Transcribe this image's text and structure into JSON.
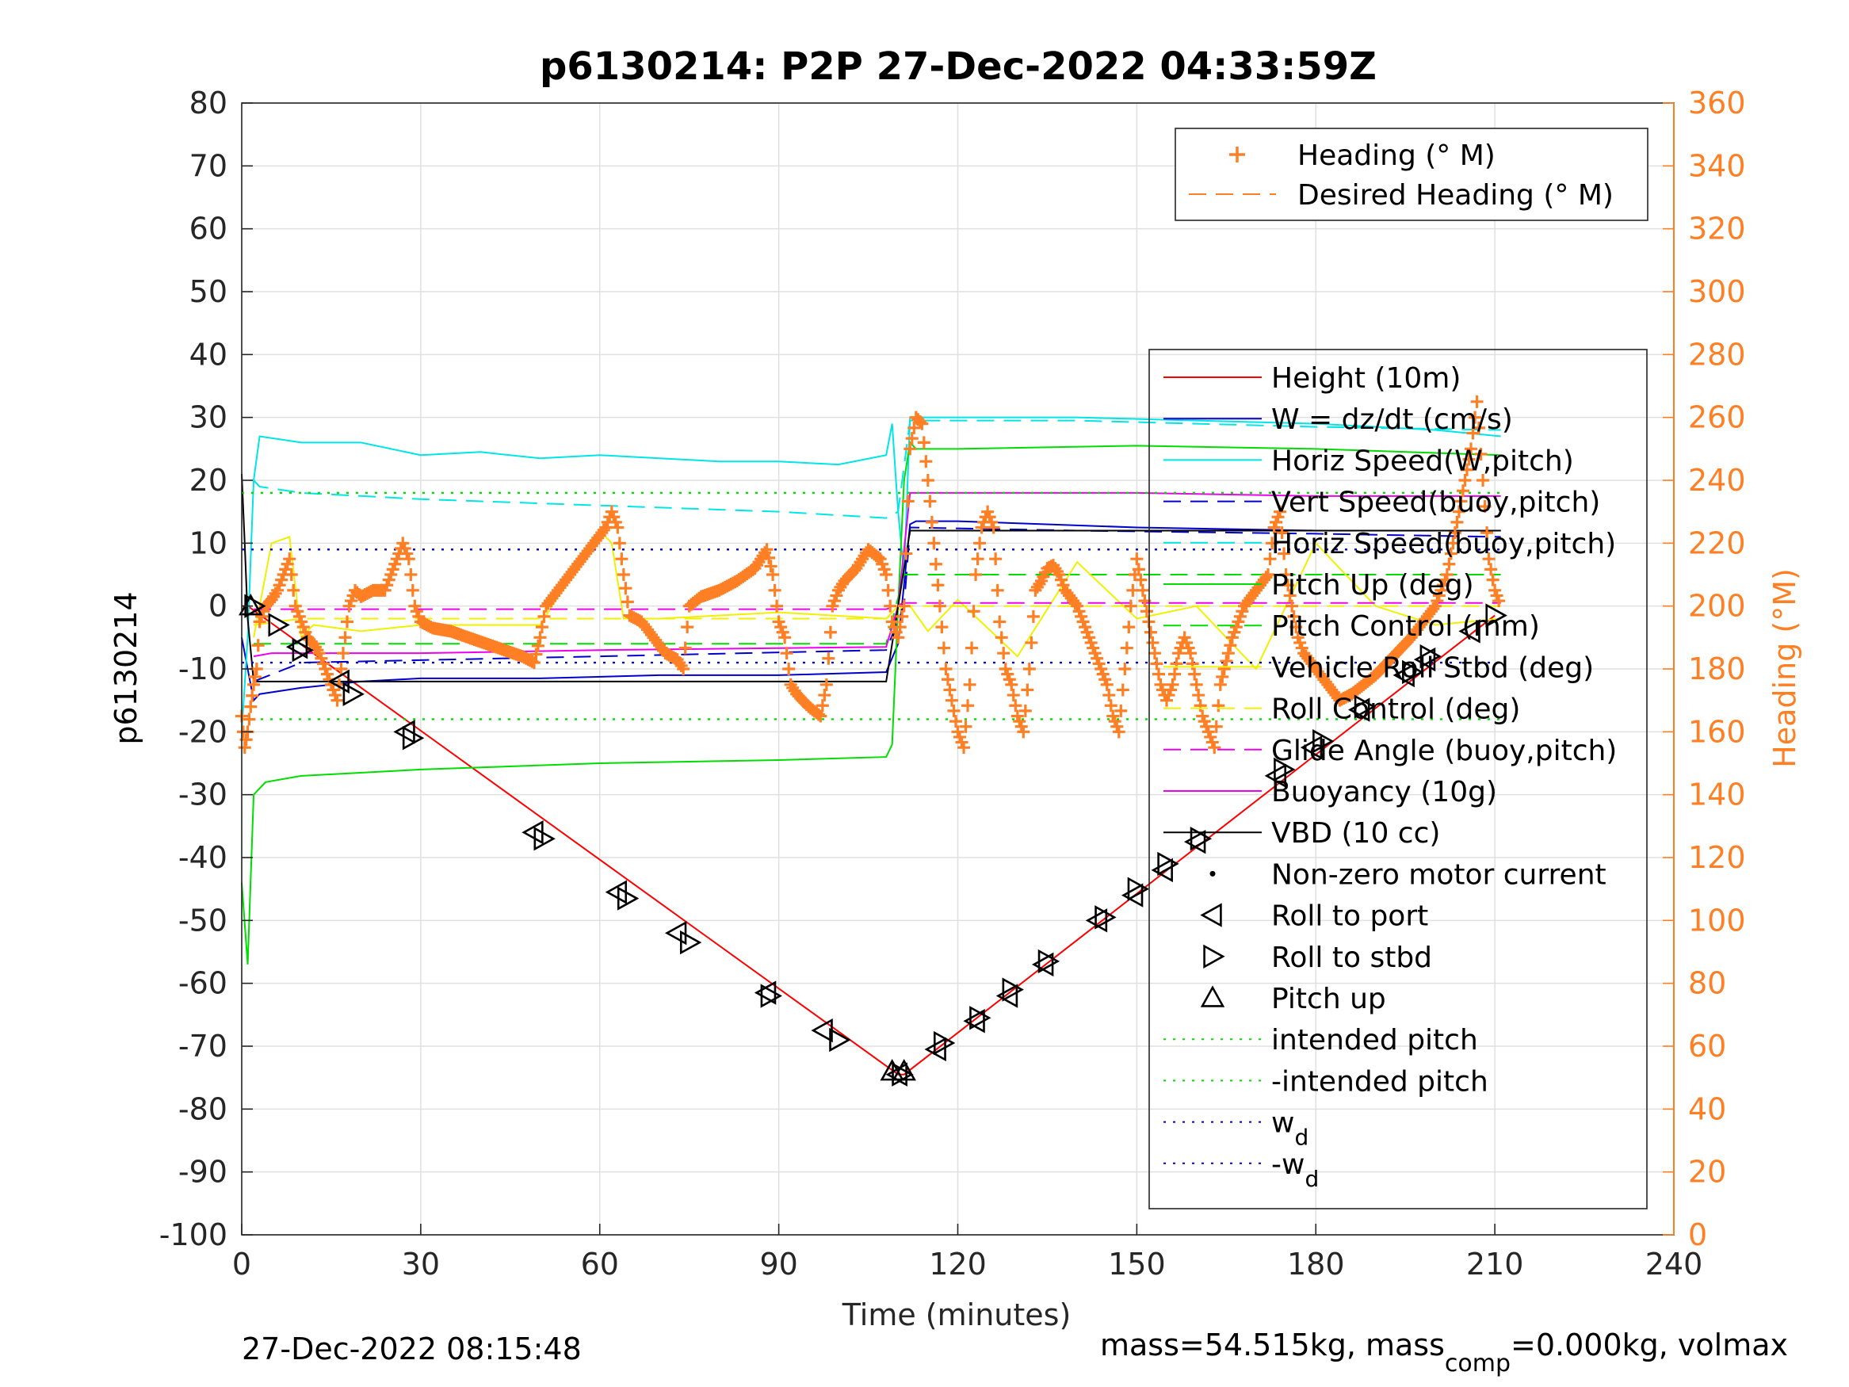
{
  "chart_data": {
    "type": "line",
    "title": "p6130214: P2P 27-Dec-2022 04:33:59Z",
    "xlabel": "Time (minutes)",
    "ylabel_left": "p6130214",
    "ylabel_right": "Heading (°M)",
    "xlim": [
      0,
      240
    ],
    "ylim_left": [
      -100,
      80
    ],
    "ylim_right": [
      0,
      360
    ],
    "xticks": [
      0,
      30,
      60,
      90,
      120,
      150,
      180,
      210,
      240
    ],
    "yticks_left": [
      -100,
      -90,
      -80,
      -70,
      -60,
      -50,
      -40,
      -30,
      -20,
      -10,
      0,
      10,
      20,
      30,
      40,
      50,
      60,
      70,
      80
    ],
    "yticks_right": [
      0,
      20,
      40,
      60,
      80,
      100,
      120,
      140,
      160,
      180,
      200,
      220,
      240,
      260,
      280,
      300,
      320,
      340,
      360
    ],
    "grid": true,
    "timestamp": "27-Dec-2022 08:15:48",
    "footer": {
      "prefix": "mass=54.515kg, mass",
      "sub": "comp",
      "suffix": "=0.000kg, volmax"
    },
    "legend_heading": [
      {
        "label": "Heading (° M)",
        "style": "plus",
        "color": "#ff7f24"
      },
      {
        "label": "Desired Heading (° M)",
        "style": "dashed",
        "color": "#ff7f24"
      }
    ],
    "legend_main": [
      {
        "label": "Height (10m)",
        "style": "solid",
        "color": "#ff0000"
      },
      {
        "label": "W = dz/dt (cm/s)",
        "style": "solid",
        "color": "#0000cc"
      },
      {
        "label": "Horiz Speed(W,pitch)",
        "style": "solid",
        "color": "#00e5e5"
      },
      {
        "label": "Vert Speed(buoy,pitch)",
        "style": "dashed",
        "color": "#0000cc"
      },
      {
        "label": "Horiz Speed(buoy,pitch)",
        "style": "dashed",
        "color": "#00e5e5"
      },
      {
        "label": "Pitch Up (deg)",
        "style": "solid",
        "color": "#00dd00"
      },
      {
        "label": "Pitch Control (mm)",
        "style": "dashed",
        "color": "#00dd00"
      },
      {
        "label": "Vehicle Roll Stbd (deg)",
        "style": "solid",
        "color": "#f0f000"
      },
      {
        "label": "Roll Control (deg)",
        "style": "dashed",
        "color": "#f0f000"
      },
      {
        "label": "Glide Angle (buoy,pitch)",
        "style": "dashed",
        "color": "#ee00ee"
      },
      {
        "label": "Buoyancy (10g)",
        "style": "solid",
        "color": "#ee00ee"
      },
      {
        "label": "VBD (10 cc)",
        "style": "solid",
        "color": "#000000"
      },
      {
        "label": "Non-zero motor current",
        "style": "dot",
        "color": "#000000"
      },
      {
        "label": "Roll to port",
        "style": "tri-left",
        "color": "#000000"
      },
      {
        "label": "Roll to stbd",
        "style": "tri-right",
        "color": "#000000"
      },
      {
        "label": "Pitch up",
        "style": "tri-up",
        "color": "#000000"
      },
      {
        "label": "intended pitch",
        "style": "dotted",
        "color": "#00dd00"
      },
      {
        "label": "-intended pitch",
        "style": "dotted",
        "color": "#00dd00"
      },
      {
        "label": "w",
        "sub": "d",
        "style": "dotted",
        "color": "#0000cc"
      },
      {
        "label": "-w",
        "sub": "d",
        "style": "dotted",
        "color": "#0000cc"
      }
    ],
    "series": [
      {
        "name": "Height (10m)",
        "axis": "left",
        "color": "#ff0000",
        "style": "solid",
        "x": [
          0,
          1,
          110,
          111,
          210
        ],
        "y": [
          0,
          0,
          -74.5,
          -74.5,
          -1.5
        ]
      },
      {
        "name": "W = dz/dt (cm/s)",
        "axis": "left",
        "color": "#0000cc",
        "style": "solid",
        "x": [
          0,
          1,
          2,
          3,
          10,
          20,
          30,
          50,
          70,
          90,
          108,
          110,
          112,
          113,
          120,
          150,
          180,
          211
        ],
        "y": [
          -5,
          -10,
          -15,
          -14,
          -13,
          -12,
          -11.5,
          -11.5,
          -11,
          -11,
          -10.5,
          -6,
          13,
          13.5,
          13.5,
          12.5,
          12,
          12
        ]
      },
      {
        "name": "Horiz Speed(W,pitch)",
        "axis": "left",
        "color": "#00e5e5",
        "style": "solid",
        "x": [
          0,
          1,
          2,
          3,
          10,
          20,
          30,
          40,
          50,
          60,
          70,
          80,
          90,
          100,
          108,
          109,
          110,
          111,
          112,
          120,
          140,
          160,
          180,
          200,
          211
        ],
        "y": [
          -20,
          -5,
          20,
          27,
          26,
          26,
          24,
          24.5,
          23.5,
          24,
          23.5,
          23,
          23,
          22.5,
          24,
          29,
          15,
          5,
          30,
          30,
          30,
          29.5,
          29,
          28,
          27
        ]
      },
      {
        "name": "Vert Speed(buoy,pitch)",
        "axis": "left",
        "color": "#0000cc",
        "style": "dashed",
        "x": [
          2,
          10,
          60,
          108,
          111,
          112,
          140,
          180,
          211
        ],
        "y": [
          -12,
          -9,
          -8,
          -7,
          0,
          12.5,
          12,
          11.5,
          11
        ]
      },
      {
        "name": "Horiz Speed(buoy,pitch)",
        "axis": "left",
        "color": "#00e5e5",
        "style": "dashed",
        "x": [
          2,
          3,
          10,
          30,
          60,
          90,
          108,
          110,
          112,
          140,
          180,
          211
        ],
        "y": [
          20,
          19,
          18,
          17,
          16,
          15,
          14,
          15,
          29.5,
          29.5,
          28.5,
          28
        ]
      },
      {
        "name": "Pitch Up (deg)",
        "axis": "left",
        "color": "#00dd00",
        "style": "solid",
        "x": [
          0,
          1,
          2,
          3,
          4,
          10,
          30,
          60,
          90,
          108,
          109,
          110,
          111,
          112,
          113,
          120,
          150,
          180,
          211
        ],
        "y": [
          -44,
          -57,
          -30,
          -29,
          -28,
          -27,
          -26,
          -25,
          -24.5,
          -24,
          -22,
          0,
          20,
          26,
          25,
          25,
          25.5,
          25,
          24
        ]
      },
      {
        "name": "Pitch Control (mm)",
        "axis": "left",
        "color": "#00dd00",
        "style": "dashed",
        "x": [
          2,
          10,
          50,
          108,
          111,
          115,
          160,
          211
        ],
        "y": [
          -6,
          -6,
          -6,
          -6,
          5,
          5,
          5,
          5
        ]
      },
      {
        "name": "Vehicle Roll Stbd (deg)",
        "axis": "left",
        "color": "#f0f000",
        "style": "solid",
        "x": [
          2,
          5,
          8,
          10,
          12,
          20,
          30,
          50,
          60,
          62,
          64,
          70,
          90,
          108,
          110,
          112,
          115,
          120,
          130,
          140,
          150,
          160,
          170,
          180,
          190,
          200,
          211
        ],
        "y": [
          -5,
          10,
          11,
          -5,
          -3,
          -4,
          -3,
          -3,
          12,
          10,
          -2,
          -2,
          -1,
          -2,
          0,
          0,
          -4,
          1,
          -8,
          7,
          -2,
          0,
          -10,
          10,
          0,
          -3,
          -2
        ]
      },
      {
        "name": "Roll Control (deg)",
        "axis": "left",
        "color": "#f0f000",
        "style": "dashed",
        "x": [
          2,
          10,
          50,
          108,
          111,
          130,
          160,
          190,
          211
        ],
        "y": [
          -3,
          -2,
          -2,
          -2,
          0,
          0,
          0,
          0,
          0
        ]
      },
      {
        "name": "Glide Angle (buoy,pitch)",
        "axis": "left",
        "color": "#ee00ee",
        "style": "dashed",
        "x": [
          2,
          60,
          108,
          111,
          160,
          211
        ],
        "y": [
          -0.5,
          -0.5,
          -0.5,
          0.5,
          0.5,
          0.5
        ]
      },
      {
        "name": "Buoyancy (10g)",
        "axis": "left",
        "color": "#ee00ee",
        "style": "solid",
        "x": [
          2,
          5,
          30,
          60,
          108,
          110,
          112,
          150,
          180,
          211
        ],
        "y": [
          -8,
          -7.5,
          -7.5,
          -7,
          -6.5,
          0,
          18,
          18,
          17.5,
          17.5
        ]
      },
      {
        "name": "VBD (10 cc)",
        "axis": "left",
        "color": "#000000",
        "style": "solid",
        "x": [
          0,
          0.5,
          1,
          2,
          108,
          110,
          112,
          211
        ],
        "y": [
          21,
          10,
          -2,
          -12,
          -12,
          0,
          12,
          12
        ]
      },
      {
        "name": "intended pitch",
        "axis": "left",
        "color": "#00dd00",
        "style": "dotted",
        "x": [
          0,
          211
        ],
        "y": [
          18,
          18
        ]
      },
      {
        "name": "-intended pitch",
        "axis": "left",
        "color": "#00dd00",
        "style": "dotted",
        "x": [
          0,
          211
        ],
        "y": [
          -18,
          -18
        ]
      },
      {
        "name": "w_d",
        "axis": "left",
        "color": "#0000cc",
        "style": "dotted",
        "x": [
          0,
          211
        ],
        "y": [
          9,
          9
        ]
      },
      {
        "name": "-w_d",
        "axis": "left",
        "color": "#0000cc",
        "style": "dotted",
        "x": [
          0,
          211
        ],
        "y": [
          -9,
          -9
        ]
      }
    ],
    "heading": {
      "name": "Heading (° M)",
      "axis": "right",
      "color": "#ff7f24",
      "x": [
        0,
        0.5,
        1,
        1.5,
        2,
        2.5,
        3,
        4,
        5,
        6,
        7,
        8,
        9,
        10,
        11,
        12,
        13,
        14,
        15,
        16,
        17,
        18,
        19,
        20,
        22,
        24,
        26,
        27,
        28,
        29,
        30,
        32,
        35,
        38,
        41,
        44,
        47,
        49,
        50,
        51,
        53,
        55,
        57,
        59,
        61,
        62,
        63,
        64,
        65,
        67,
        69,
        71,
        73,
        74,
        75,
        77,
        80,
        83,
        86,
        88,
        89,
        90,
        91,
        92,
        93,
        95,
        97,
        98,
        99,
        100,
        101,
        103,
        105,
        107,
        108,
        109,
        110,
        111,
        112,
        113,
        114,
        115,
        116,
        117,
        118,
        119,
        120,
        121,
        122,
        123,
        124,
        125,
        126,
        127,
        128,
        129,
        130,
        131,
        132,
        133,
        134,
        135,
        136,
        137,
        138,
        140,
        142,
        144,
        145,
        146,
        147,
        148,
        149,
        150,
        151,
        152,
        153,
        154,
        155,
        156,
        157,
        158,
        159,
        160,
        161,
        162,
        163,
        164,
        166,
        168,
        170,
        172,
        173,
        174,
        175,
        176,
        177,
        178,
        180,
        182,
        184,
        186,
        188,
        190,
        192,
        194,
        196,
        198,
        200,
        202,
        204,
        206,
        207,
        208,
        209,
        210,
        211
      ],
      "y": [
        165,
        155,
        160,
        168,
        175,
        180,
        195,
        200,
        202,
        205,
        210,
        215,
        200,
        195,
        190,
        188,
        185,
        180,
        175,
        170,
        185,
        200,
        205,
        203,
        205,
        205,
        215,
        220,
        215,
        200,
        195,
        193,
        192,
        190,
        188,
        186,
        184,
        182,
        190,
        200,
        205,
        210,
        215,
        220,
        225,
        230,
        225,
        210,
        197,
        195,
        190,
        185,
        183,
        180,
        200,
        203,
        205,
        208,
        212,
        218,
        210,
        195,
        190,
        175,
        172,
        168,
        165,
        175,
        200,
        205,
        208,
        212,
        218,
        215,
        210,
        195,
        190,
        200,
        250,
        260,
        258,
        240,
        220,
        200,
        180,
        170,
        160,
        155,
        175,
        210,
        225,
        230,
        225,
        195,
        180,
        175,
        165,
        160,
        180,
        205,
        208,
        212,
        213,
        210,
        205,
        200,
        190,
        180,
        175,
        165,
        160,
        180,
        200,
        215,
        205,
        195,
        185,
        175,
        170,
        175,
        185,
        190,
        185,
        175,
        165,
        160,
        155,
        175,
        190,
        200,
        205,
        210,
        225,
        230,
        210,
        200,
        190,
        185,
        180,
        175,
        170,
        172,
        175,
        178,
        182,
        186,
        190,
        195,
        200,
        210,
        230,
        250,
        265,
        240,
        215,
        205,
        200
      ]
    },
    "markers": [
      {
        "x": 1.5,
        "y": 0,
        "type": "up"
      },
      {
        "x": 2,
        "y": 0,
        "type": "right"
      },
      {
        "x": 6,
        "y": -3,
        "type": "right"
      },
      {
        "x": 9.5,
        "y": -6.5,
        "type": "left"
      },
      {
        "x": 10,
        "y": -7,
        "type": "right"
      },
      {
        "x": 16.5,
        "y": -12,
        "type": "left"
      },
      {
        "x": 18.5,
        "y": -14,
        "type": "right"
      },
      {
        "x": 27.5,
        "y": -20,
        "type": "left"
      },
      {
        "x": 28.5,
        "y": -21,
        "type": "right"
      },
      {
        "x": 49,
        "y": -36,
        "type": "left"
      },
      {
        "x": 50.5,
        "y": -37,
        "type": "right"
      },
      {
        "x": 63,
        "y": -45.5,
        "type": "left"
      },
      {
        "x": 64.5,
        "y": -46.5,
        "type": "right"
      },
      {
        "x": 73,
        "y": -52,
        "type": "left"
      },
      {
        "x": 75,
        "y": -53.5,
        "type": "right"
      },
      {
        "x": 88,
        "y": -61.5,
        "type": "left"
      },
      {
        "x": 88.5,
        "y": -62,
        "type": "right"
      },
      {
        "x": 97.5,
        "y": -67.5,
        "type": "left"
      },
      {
        "x": 100,
        "y": -69,
        "type": "right"
      },
      {
        "x": 109,
        "y": -74,
        "type": "up"
      },
      {
        "x": 110,
        "y": -74.5,
        "type": "left"
      },
      {
        "x": 110.5,
        "y": -74.5,
        "type": "right"
      },
      {
        "x": 111,
        "y": -74,
        "type": "up"
      },
      {
        "x": 116.5,
        "y": -70.5,
        "type": "left"
      },
      {
        "x": 117.5,
        "y": -69.5,
        "type": "right"
      },
      {
        "x": 123,
        "y": -66,
        "type": "left"
      },
      {
        "x": 123.5,
        "y": -65.5,
        "type": "right"
      },
      {
        "x": 128.5,
        "y": -62,
        "type": "left"
      },
      {
        "x": 129,
        "y": -61,
        "type": "right"
      },
      {
        "x": 134.5,
        "y": -57,
        "type": "left"
      },
      {
        "x": 135,
        "y": -56.5,
        "type": "right"
      },
      {
        "x": 143.5,
        "y": -50,
        "type": "left"
      },
      {
        "x": 144.5,
        "y": -49.5,
        "type": "right"
      },
      {
        "x": 149.5,
        "y": -46,
        "type": "left"
      },
      {
        "x": 150,
        "y": -45,
        "type": "right"
      },
      {
        "x": 154.5,
        "y": -42,
        "type": "left"
      },
      {
        "x": 155,
        "y": -41,
        "type": "right"
      },
      {
        "x": 160,
        "y": -37.5,
        "type": "left"
      },
      {
        "x": 160.5,
        "y": -37,
        "type": "right"
      },
      {
        "x": 173.5,
        "y": -27,
        "type": "left"
      },
      {
        "x": 174.5,
        "y": -26,
        "type": "right"
      },
      {
        "x": 179.5,
        "y": -22.5,
        "type": "left"
      },
      {
        "x": 181,
        "y": -21.5,
        "type": "right"
      },
      {
        "x": 187.5,
        "y": -16.5,
        "type": "left"
      },
      {
        "x": 188,
        "y": -16,
        "type": "right"
      },
      {
        "x": 195,
        "y": -11,
        "type": "left"
      },
      {
        "x": 196,
        "y": -10.5,
        "type": "right"
      },
      {
        "x": 198.5,
        "y": -8.5,
        "type": "left"
      },
      {
        "x": 199,
        "y": -8,
        "type": "right"
      },
      {
        "x": 206,
        "y": -4,
        "type": "left"
      },
      {
        "x": 210,
        "y": -1.5,
        "type": "right"
      }
    ]
  }
}
